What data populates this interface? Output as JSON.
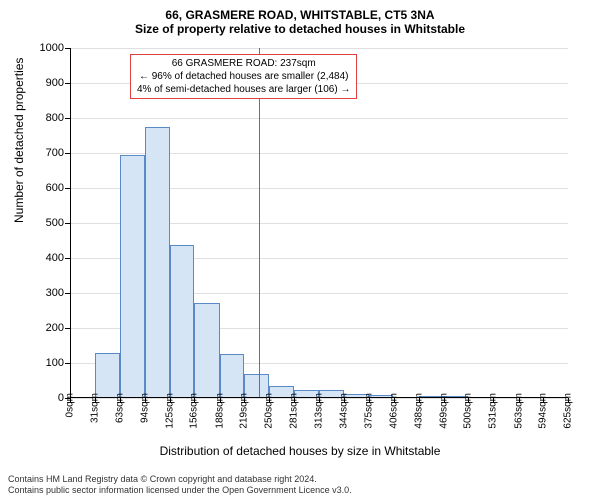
{
  "title_main": "66, GRASMERE ROAD, WHITSTABLE, CT5 3NA",
  "title_sub": "Size of property relative to detached houses in Whitstable",
  "ylabel": "Number of detached properties",
  "xlabel": "Distribution of detached houses by size in Whitstable",
  "chart": {
    "type": "histogram",
    "background_color": "#ffffff",
    "grid_color": "#e0e0e0",
    "axis_color": "#000000",
    "bar_fill": "#d6e5f5",
    "bar_border": "#5a8ac6",
    "vline_color": "#e04040",
    "vline_x": 237,
    "ylim": [
      0,
      1000
    ],
    "ytick_step": 100,
    "xlim": [
      0,
      625
    ],
    "xtick_labels": [
      "0sqm",
      "31sqm",
      "63sqm",
      "94sqm",
      "125sqm",
      "156sqm",
      "188sqm",
      "219sqm",
      "250sqm",
      "281sqm",
      "313sqm",
      "344sqm",
      "375sqm",
      "406sqm",
      "438sqm",
      "469sqm",
      "500sqm",
      "531sqm",
      "563sqm",
      "594sqm",
      "625sqm"
    ],
    "xtick_positions": [
      0,
      31,
      63,
      94,
      125,
      156,
      188,
      219,
      250,
      281,
      313,
      344,
      375,
      406,
      438,
      469,
      500,
      531,
      563,
      594,
      625
    ],
    "bars": [
      {
        "x0": 0,
        "x1": 31,
        "value": 0
      },
      {
        "x0": 31,
        "x1": 63,
        "value": 128
      },
      {
        "x0": 63,
        "x1": 94,
        "value": 694
      },
      {
        "x0": 94,
        "x1": 125,
        "value": 775
      },
      {
        "x0": 125,
        "x1": 156,
        "value": 438
      },
      {
        "x0": 156,
        "x1": 188,
        "value": 272
      },
      {
        "x0": 188,
        "x1": 219,
        "value": 127
      },
      {
        "x0": 219,
        "x1": 250,
        "value": 70
      },
      {
        "x0": 250,
        "x1": 281,
        "value": 33
      },
      {
        "x0": 281,
        "x1": 313,
        "value": 23
      },
      {
        "x0": 313,
        "x1": 344,
        "value": 24
      },
      {
        "x0": 344,
        "x1": 375,
        "value": 11
      },
      {
        "x0": 375,
        "x1": 406,
        "value": 10
      },
      {
        "x0": 406,
        "x1": 438,
        "value": 0
      },
      {
        "x0": 438,
        "x1": 469,
        "value": 4
      },
      {
        "x0": 469,
        "x1": 500,
        "value": 3
      },
      {
        "x0": 500,
        "x1": 531,
        "value": 0
      },
      {
        "x0": 531,
        "x1": 563,
        "value": 0
      },
      {
        "x0": 563,
        "x1": 594,
        "value": 0
      },
      {
        "x0": 594,
        "x1": 625,
        "value": 0
      }
    ],
    "info_box": {
      "border_color": "#e04040",
      "line1": "66 GRASMERE ROAD: 237sqm",
      "line2": "← 96% of detached houses are smaller (2,484)",
      "line3": "4% of semi-detached houses are larger (106) →"
    },
    "label_fontsize": 12,
    "tick_fontsize": 11
  },
  "footer_line1": "Contains HM Land Registry data © Crown copyright and database right 2024.",
  "footer_line2": "Contains public sector information licensed under the Open Government Licence v3.0."
}
